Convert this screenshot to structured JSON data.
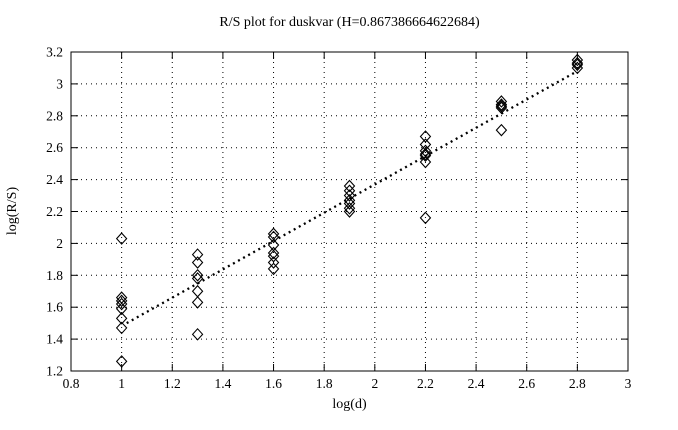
{
  "chart_data": {
    "type": "scatter",
    "title": "R/S plot for duskvar (H=0.867386664622684)",
    "xlabel": "log(d)",
    "ylabel": "log(R/S)",
    "xlim": [
      0.8,
      3.0
    ],
    "ylim": [
      1.2,
      3.2
    ],
    "xticks": {
      "values": [
        0.8,
        1.0,
        1.2,
        1.4,
        1.6,
        1.8,
        2.0,
        2.2,
        2.4,
        2.6,
        2.8,
        3.0
      ],
      "labels": [
        "0.8",
        "1",
        "1.2",
        "1.4",
        "1.6",
        "1.8",
        "2",
        "2.2",
        "2.4",
        "2.6",
        "2.8",
        "3"
      ]
    },
    "yticks": {
      "values": [
        1.2,
        1.4,
        1.6,
        1.8,
        2.0,
        2.2,
        2.4,
        2.6,
        2.8,
        3.0,
        3.2
      ],
      "labels": [
        "1.2",
        "1.4",
        "1.6",
        "1.8",
        "2",
        "2.2",
        "2.4",
        "2.6",
        "2.8",
        "3",
        "3.2"
      ]
    },
    "grid": true,
    "grid_style": "dotted",
    "legend": "none",
    "marker": "open-diamond",
    "marker_color": "#000000",
    "background_color": "#ffffff",
    "series": [
      {
        "points": [
          [
            1.0,
            2.03
          ],
          [
            1.0,
            1.66
          ],
          [
            1.0,
            1.64
          ],
          [
            1.0,
            1.62
          ],
          [
            1.0,
            1.59
          ],
          [
            1.0,
            1.53
          ],
          [
            1.0,
            1.47
          ],
          [
            1.0,
            1.26
          ],
          [
            1.3,
            1.93
          ],
          [
            1.3,
            1.88
          ],
          [
            1.3,
            1.8
          ],
          [
            1.3,
            1.78
          ],
          [
            1.3,
            1.7
          ],
          [
            1.3,
            1.63
          ],
          [
            1.3,
            1.43
          ],
          [
            1.6,
            2.06
          ],
          [
            1.6,
            2.04
          ],
          [
            1.6,
            1.99
          ],
          [
            1.6,
            1.94
          ],
          [
            1.6,
            1.92
          ],
          [
            1.6,
            1.88
          ],
          [
            1.6,
            1.84
          ],
          [
            1.9,
            2.36
          ],
          [
            1.9,
            2.33
          ],
          [
            1.9,
            2.3
          ],
          [
            1.9,
            2.27
          ],
          [
            1.9,
            2.25
          ],
          [
            1.9,
            2.22
          ],
          [
            1.9,
            2.2
          ],
          [
            2.2,
            2.67
          ],
          [
            2.2,
            2.62
          ],
          [
            2.2,
            2.58
          ],
          [
            2.2,
            2.56
          ],
          [
            2.2,
            2.55
          ],
          [
            2.2,
            2.51
          ],
          [
            2.2,
            2.16
          ],
          [
            2.5,
            2.89
          ],
          [
            2.5,
            2.87
          ],
          [
            2.5,
            2.86
          ],
          [
            2.5,
            2.85
          ],
          [
            2.5,
            2.71
          ],
          [
            2.8,
            3.15
          ],
          [
            2.8,
            3.13
          ],
          [
            2.8,
            3.12
          ],
          [
            2.8,
            3.1
          ]
        ]
      }
    ],
    "fit_line": {
      "style": "dotted",
      "color": "#000000",
      "H": 0.867386664622684,
      "x": [
        1.02,
        2.8
      ],
      "y": [
        1.5,
        3.08
      ]
    }
  }
}
